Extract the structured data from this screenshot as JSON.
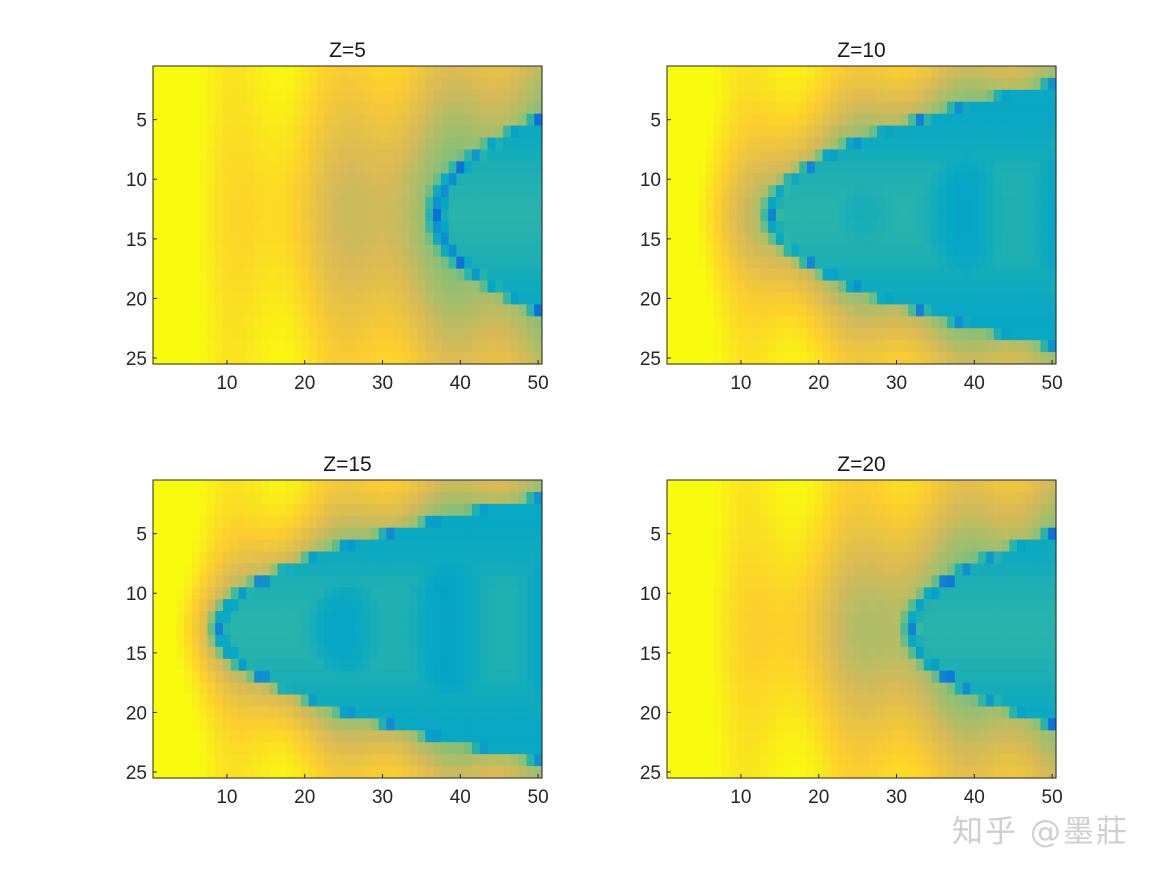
{
  "chart_data": [
    {
      "type": "heatmap",
      "title": "Z=5",
      "xlabel": "",
      "ylabel": "",
      "xlim": [
        0.5,
        50.5
      ],
      "ylim": [
        0.5,
        25.5
      ],
      "y_reversed": true,
      "colormap": "parula",
      "xticks": [
        10,
        20,
        30,
        40,
        50
      ],
      "yticks": [
        5,
        10,
        15,
        20,
        25
      ],
      "grid_size": [
        25,
        50
      ],
      "minima_curve": {
        "vertex_x": 37,
        "vertex_y": 13,
        "half_width_at_edge": 8,
        "edge_x": 50
      },
      "description": "warm (yellow/orange) on left, cool (green/cyan) on right, dark-blue parabolic ridge opening right"
    },
    {
      "type": "heatmap",
      "title": "Z=10",
      "xlabel": "",
      "ylabel": "",
      "xlim": [
        0.5,
        50.5
      ],
      "ylim": [
        0.5,
        25.5
      ],
      "y_reversed": true,
      "colormap": "parula",
      "xticks": [
        10,
        20,
        30,
        40,
        50
      ],
      "yticks": [
        5,
        10,
        15,
        20,
        25
      ],
      "grid_size": [
        25,
        50
      ],
      "minima_curve": {
        "vertex_x": 14,
        "vertex_y": 13,
        "half_width_at_edge": 11,
        "edge_x": 50
      }
    },
    {
      "type": "heatmap",
      "title": "Z=15",
      "xlabel": "",
      "ylabel": "",
      "xlim": [
        0.5,
        50.5
      ],
      "ylim": [
        0.5,
        25.5
      ],
      "y_reversed": true,
      "colormap": "parula",
      "xticks": [
        10,
        20,
        30,
        40,
        50
      ],
      "yticks": [
        5,
        10,
        15,
        20,
        25
      ],
      "grid_size": [
        25,
        50
      ],
      "minima_curve": {
        "vertex_x": 9,
        "vertex_y": 13,
        "half_width_at_edge": 11,
        "edge_x": 50
      }
    },
    {
      "type": "heatmap",
      "title": "Z=20",
      "xlabel": "",
      "ylabel": "",
      "xlim": [
        0.5,
        50.5
      ],
      "ylim": [
        0.5,
        25.5
      ],
      "y_reversed": true,
      "colormap": "parula",
      "xticks": [
        10,
        20,
        30,
        40,
        50
      ],
      "yticks": [
        5,
        10,
        15,
        20,
        25
      ],
      "grid_size": [
        25,
        50
      ],
      "minima_curve": {
        "vertex_x": 32,
        "vertex_y": 13,
        "half_width_at_edge": 8,
        "edge_x": 50
      }
    }
  ],
  "watermark": "知乎 @墨莊",
  "colors": {
    "colormap_stops": [
      "#352a87",
      "#0363e1",
      "#1485d4",
      "#06a7c6",
      "#38b99e",
      "#92bf73",
      "#d9ba56",
      "#fcce2e",
      "#f9fb0e"
    ],
    "axis": "#262626",
    "background": "#ffffff"
  }
}
